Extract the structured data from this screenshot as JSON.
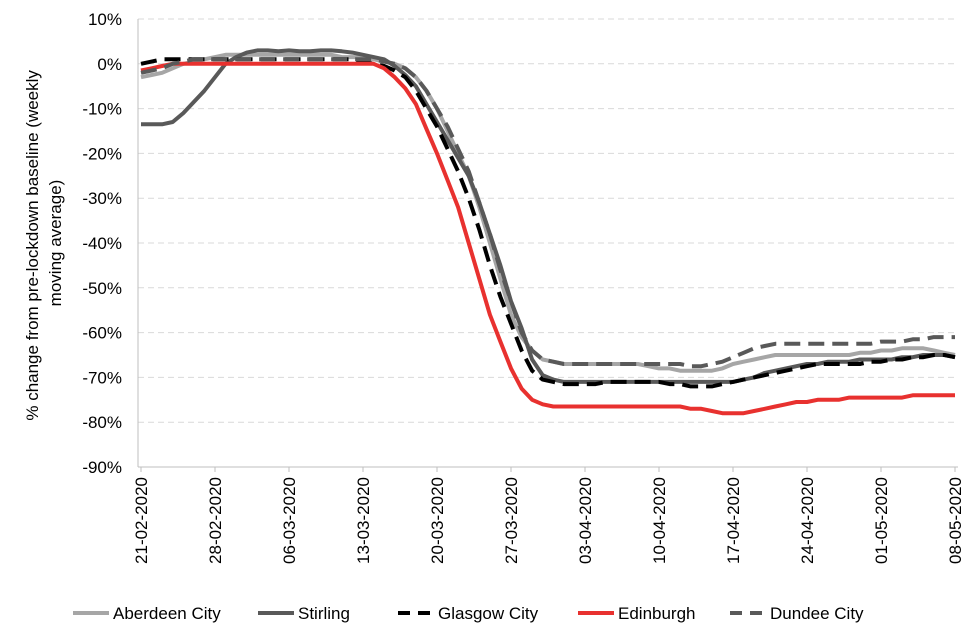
{
  "chart_data": {
    "type": "line",
    "ylabel": "% change from pre-lockdown baseline (weekly moving average)",
    "ylabel_lines": [
      "% change from pre-lockdown baseline (weekly",
      "moving average)"
    ],
    "xlabel": "",
    "ylim": [
      -90,
      10
    ],
    "y_ticks": [
      10,
      0,
      -10,
      -20,
      -30,
      -40,
      -50,
      -60,
      -70,
      -80,
      -90
    ],
    "y_tick_labels": [
      "10%",
      "0%",
      "-10%",
      "-20%",
      "-30%",
      "-40%",
      "-50%",
      "-60%",
      "-70%",
      "-80%",
      "-90%"
    ],
    "x_start": "21-02-2020",
    "x_end": "09-05-2020",
    "x_tick_labels": [
      "21-02-2020",
      "28-02-2020",
      "06-03-2020",
      "13-03-2020",
      "20-03-2020",
      "27-03-2020",
      "03-04-2020",
      "10-04-2020",
      "17-04-2020",
      "24-04-2020",
      "01-05-2020",
      "08-05-2020"
    ],
    "grid": "horizontal dashed",
    "legend_position": "bottom",
    "series": [
      {
        "name": "Aberdeen City",
        "color": "#a6a6a6",
        "dash": "solid",
        "values": [
          -3,
          -2.5,
          -2,
          -1,
          0,
          0.5,
          1,
          1.5,
          2,
          2,
          2,
          2,
          2,
          2,
          2,
          2,
          2,
          2,
          2,
          1.5,
          1.5,
          1.5,
          1,
          0.5,
          0,
          -1,
          -3,
          -6,
          -10,
          -15,
          -20,
          -25,
          -32,
          -40,
          -48,
          -56,
          -61,
          -64,
          -66,
          -66.5,
          -67,
          -67,
          -67,
          -67,
          -67,
          -67,
          -67,
          -67,
          -67.5,
          -68,
          -68,
          -68.5,
          -68.5,
          -68.5,
          -68.5,
          -68,
          -67,
          -66.5,
          -66,
          -65.5,
          -65,
          -65,
          -65,
          -65,
          -65,
          -65,
          -65,
          -65,
          -64.5,
          -64.5,
          -64,
          -64,
          -63.5,
          -63.5,
          -63.5,
          -64,
          -64.5,
          -65
        ]
      },
      {
        "name": "Stirling",
        "color": "#595959",
        "dash": "solid",
        "values": [
          -13.5,
          -13.5,
          -13.5,
          -13,
          -11,
          -8.5,
          -6,
          -3,
          0,
          1.5,
          2.5,
          3,
          3,
          2.8,
          3,
          2.8,
          2.8,
          3,
          3,
          2.8,
          2.5,
          2,
          1.5,
          1,
          -0.5,
          -2.5,
          -5,
          -9,
          -13,
          -17,
          -21,
          -25,
          -31,
          -38,
          -45,
          -53,
          -59,
          -66,
          -69.5,
          -70.5,
          -71,
          -71,
          -71,
          -71,
          -71,
          -71,
          -71,
          -71,
          -71,
          -71,
          -71,
          -71,
          -71,
          -71,
          -71,
          -71,
          -71,
          -70.5,
          -70,
          -69,
          -68.5,
          -68,
          -67.5,
          -67,
          -67,
          -66.5,
          -66.5,
          -66.5,
          -66,
          -66,
          -66,
          -66,
          -65.5,
          -65.5,
          -65,
          -65,
          -65,
          -65.5
        ]
      },
      {
        "name": "Glasgow City",
        "color": "#000000",
        "dash": "long-dash",
        "values": [
          0,
          0.5,
          1,
          1,
          1,
          1,
          1,
          1,
          1,
          1,
          1,
          1,
          1,
          1,
          1,
          1,
          1,
          1,
          1,
          1,
          1,
          0.5,
          0,
          -0.5,
          -1.5,
          -3,
          -6,
          -10,
          -14,
          -19,
          -24,
          -30,
          -37,
          -45,
          -52,
          -58,
          -64,
          -68.5,
          -70.5,
          -71,
          -71.5,
          -71.5,
          -71.5,
          -71.5,
          -71,
          -71,
          -71,
          -71,
          -71,
          -71,
          -71.5,
          -71.5,
          -72,
          -72,
          -72,
          -71.5,
          -71,
          -70.5,
          -70,
          -69.5,
          -69,
          -68.5,
          -68,
          -67.5,
          -67,
          -67,
          -67,
          -67,
          -67,
          -66.5,
          -66.5,
          -66,
          -66,
          -65.5,
          -65.5,
          -65,
          -65,
          -65.5
        ]
      },
      {
        "name": "Edinburgh",
        "color": "#e8312f",
        "dash": "solid",
        "values": [
          -1.5,
          -1,
          -0.5,
          0,
          0,
          0,
          0,
          0,
          0,
          0,
          0,
          0,
          0,
          0,
          0,
          0,
          0,
          0,
          0,
          0,
          0,
          0,
          0,
          -1,
          -3,
          -5.5,
          -9,
          -14.5,
          -20,
          -26,
          -32,
          -40,
          -48,
          -56,
          -62,
          -68,
          -72.5,
          -75,
          -76,
          -76.5,
          -76.5,
          -76.5,
          -76.5,
          -76.5,
          -76.5,
          -76.5,
          -76.5,
          -76.5,
          -76.5,
          -76.5,
          -76.5,
          -76.5,
          -77,
          -77,
          -77.5,
          -78,
          -78,
          -78,
          -77.5,
          -77,
          -76.5,
          -76,
          -75.5,
          -75.5,
          -75,
          -75,
          -75,
          -74.5,
          -74.5,
          -74.5,
          -74.5,
          -74.5,
          -74.5,
          -74,
          -74,
          -74,
          -74,
          -74
        ]
      },
      {
        "name": "Dundee City",
        "color": "#595959",
        "dash": "long-dash",
        "values": [
          -2,
          -1.5,
          -1,
          0,
          0.5,
          1,
          1,
          1,
          1,
          1,
          1,
          1,
          1,
          1,
          1,
          1,
          1,
          1,
          1,
          1,
          1,
          1,
          1,
          0.5,
          0,
          -1,
          -3,
          -6,
          -10,
          -14,
          -19,
          -24,
          -31,
          -38,
          -46,
          -53,
          -60,
          -64,
          -66,
          -66.5,
          -67,
          -67,
          -67,
          -67,
          -67,
          -67,
          -67,
          -67,
          -67,
          -67,
          -67,
          -67,
          -67.5,
          -67.5,
          -67,
          -66.5,
          -65.5,
          -64.5,
          -63.5,
          -63,
          -62.5,
          -62.5,
          -62.5,
          -62.5,
          -62.5,
          -62.5,
          -62.5,
          -62.5,
          -62.5,
          -62.5,
          -62,
          -62,
          -62,
          -61.5,
          -61.5,
          -61,
          -61,
          -61
        ]
      }
    ]
  }
}
